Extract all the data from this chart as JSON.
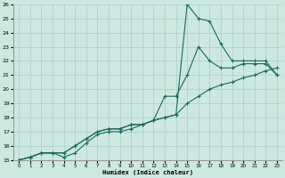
{
  "xlabel": "Humidex (Indice chaleur)",
  "xlim": [
    -0.5,
    23.5
  ],
  "ylim": [
    15,
    26
  ],
  "xticks": [
    0,
    1,
    2,
    3,
    4,
    5,
    6,
    7,
    8,
    9,
    10,
    11,
    12,
    13,
    14,
    15,
    16,
    17,
    18,
    19,
    20,
    21,
    22,
    23
  ],
  "yticks": [
    15,
    16,
    17,
    18,
    19,
    20,
    21,
    22,
    23,
    24,
    25,
    26
  ],
  "bg_color": "#cce8e0",
  "grid_color": "#aacfc8",
  "line_color": "#1a6b5e",
  "line1_x": [
    0,
    1,
    2,
    3,
    4,
    5,
    6,
    7,
    8,
    9,
    10,
    11,
    12,
    13,
    14,
    15,
    16,
    17,
    18,
    19,
    20,
    21,
    22,
    23
  ],
  "line1_y": [
    15.0,
    15.2,
    15.5,
    15.5,
    15.5,
    16.0,
    16.5,
    17.0,
    17.2,
    17.2,
    17.5,
    17.5,
    17.8,
    18.0,
    18.2,
    19.0,
    19.5,
    20.0,
    20.3,
    20.5,
    20.8,
    21.0,
    21.3,
    21.5
  ],
  "line2_x": [
    0,
    1,
    2,
    3,
    4,
    5,
    6,
    7,
    8,
    9,
    10,
    11,
    12,
    13,
    14,
    15,
    16,
    17,
    18,
    19,
    20,
    21,
    22,
    23
  ],
  "line2_y": [
    15.0,
    15.2,
    15.5,
    15.5,
    15.5,
    16.0,
    16.5,
    17.0,
    17.2,
    17.2,
    17.5,
    17.5,
    17.8,
    18.0,
    18.2,
    26.0,
    25.0,
    24.8,
    23.2,
    22.0,
    22.0,
    22.0,
    22.0,
    21.0
  ],
  "line3_x": [
    0,
    1,
    2,
    3,
    4,
    5,
    6,
    7,
    8,
    9,
    10,
    11,
    12,
    13,
    14,
    15,
    16,
    17,
    18,
    19,
    20,
    21,
    22,
    23
  ],
  "line3_y": [
    15.0,
    15.2,
    15.5,
    15.5,
    15.2,
    15.5,
    16.2,
    16.8,
    17.0,
    17.0,
    17.2,
    17.5,
    17.8,
    19.5,
    19.5,
    21.0,
    23.0,
    22.0,
    21.5,
    21.5,
    21.8,
    21.8,
    21.8,
    21.0
  ]
}
